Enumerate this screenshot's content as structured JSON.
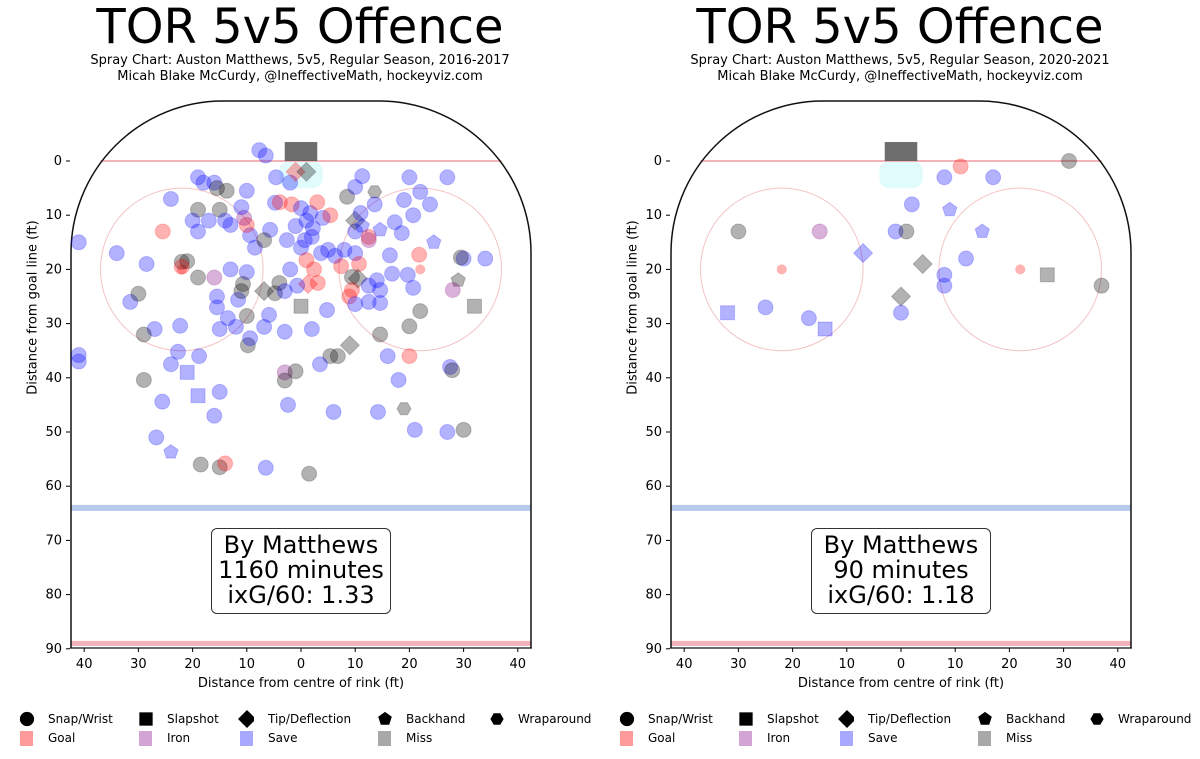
{
  "chart_data": [
    {
      "type": "scatter",
      "title": "TOR 5v5 Offence",
      "subtitle": "Spray Chart: Auston Matthews, 5v5, Regular Season, 2016-2017",
      "credit": "Micah Blake McCurdy, @IneffectiveMath, hockeyviz.com",
      "xlabel": "Distance from centre of rink (ft)",
      "ylabel": "Distance from goal line (ft)",
      "xlim": [
        -42.5,
        42.5
      ],
      "ylim": [
        90,
        -11
      ],
      "x_ticks": [
        -40,
        -30,
        -20,
        -10,
        0,
        10,
        20,
        30,
        40
      ],
      "x_tick_labels": [
        "40",
        "30",
        "20",
        "10",
        "0",
        "10",
        "20",
        "30",
        "40"
      ],
      "y_ticks": [
        0,
        10,
        20,
        30,
        40,
        50,
        60,
        70,
        80,
        90
      ],
      "y_tick_labels": [
        "0",
        "10",
        "20",
        "30",
        "40",
        "50",
        "60",
        "70",
        "80",
        "90"
      ],
      "annotation": [
        "By Matthews",
        "1160 minutes",
        "ixG/60: 1.33"
      ],
      "point_fields": [
        "x_ft",
        "y_ft",
        "shot_type",
        "result"
      ],
      "points": [
        [
          -7.7,
          -2,
          "c",
          "s"
        ],
        [
          -6.5,
          -1,
          "c",
          "s"
        ],
        [
          -4.6,
          3,
          "c",
          "s"
        ],
        [
          -2,
          4,
          "c",
          "s"
        ],
        [
          -1,
          2,
          "d",
          "g"
        ],
        [
          1,
          2,
          "d",
          "m"
        ],
        [
          -19,
          3,
          "c",
          "s"
        ],
        [
          -18,
          4,
          "c",
          "s"
        ],
        [
          -16,
          4,
          "c",
          "s"
        ],
        [
          -15.5,
          5,
          "c",
          "m"
        ],
        [
          -13.7,
          5.5,
          "c",
          "m"
        ],
        [
          -10,
          5.5,
          "c",
          "s"
        ],
        [
          -24,
          7,
          "c",
          "s"
        ],
        [
          -19,
          9,
          "c",
          "m"
        ],
        [
          -15,
          9,
          "c",
          "m"
        ],
        [
          -17,
          11,
          "c",
          "s"
        ],
        [
          -14,
          11,
          "c",
          "s"
        ],
        [
          -20,
          11,
          "c",
          "s"
        ],
        [
          -19,
          13,
          "c",
          "s"
        ],
        [
          -25.5,
          13,
          "c",
          "g"
        ],
        [
          -41,
          15,
          "c",
          "s"
        ],
        [
          -34,
          17,
          "c",
          "s"
        ],
        [
          -28.5,
          19,
          "c",
          "s"
        ],
        [
          -22,
          18.6,
          "c",
          "m"
        ],
        [
          -21,
          18.5,
          "c",
          "m"
        ],
        [
          -22,
          19.5,
          "c",
          "g"
        ],
        [
          -19,
          21.5,
          "c",
          "m"
        ],
        [
          -16,
          21.5,
          "c",
          "i"
        ],
        [
          -13,
          20,
          "c",
          "s"
        ],
        [
          -10,
          20.5,
          "c",
          "s"
        ],
        [
          -10.7,
          22.7,
          "c",
          "m"
        ],
        [
          -31.5,
          26,
          "c",
          "s"
        ],
        [
          -30,
          24.5,
          "c",
          "m"
        ],
        [
          -15.5,
          25,
          "c",
          "s"
        ],
        [
          -15.5,
          27,
          "c",
          "s"
        ],
        [
          -11.6,
          25.6,
          "c",
          "s"
        ],
        [
          -11,
          24,
          "c",
          "m"
        ],
        [
          -9.4,
          13.7,
          "c",
          "s"
        ],
        [
          -8.5,
          16,
          "c",
          "s"
        ],
        [
          -5.7,
          12.7,
          "c",
          "s"
        ],
        [
          -6.8,
          14.6,
          "c",
          "m"
        ],
        [
          -10,
          11.8,
          "c",
          "g"
        ],
        [
          -10.5,
          10.5,
          "c",
          "i"
        ],
        [
          -13,
          11.8,
          "c",
          "s"
        ],
        [
          -11,
          8.5,
          "c",
          "s"
        ],
        [
          -4.8,
          7.7,
          "c",
          "s"
        ],
        [
          -3.9,
          7.6,
          "c",
          "g"
        ],
        [
          -1.7,
          8,
          "c",
          "g"
        ],
        [
          0,
          8.7,
          "c",
          "s"
        ],
        [
          1.7,
          9.6,
          "c",
          "s"
        ],
        [
          3,
          7.6,
          "c",
          "g"
        ],
        [
          4,
          10.5,
          "c",
          "s"
        ],
        [
          5.4,
          10,
          "c",
          "g"
        ],
        [
          -2.6,
          14.6,
          "c",
          "s"
        ],
        [
          0,
          16,
          "c",
          "s"
        ],
        [
          0.7,
          14.6,
          "c",
          "s"
        ],
        [
          2.2,
          12.4,
          "c",
          "s"
        ],
        [
          3.7,
          17,
          "c",
          "s"
        ],
        [
          1,
          18.3,
          "c",
          "g"
        ],
        [
          2.4,
          20,
          "c",
          "g"
        ],
        [
          -2,
          20,
          "c",
          "s"
        ],
        [
          3.1,
          22.5,
          "c",
          "g"
        ],
        [
          1.3,
          22.7,
          "d",
          "g"
        ],
        [
          -0.7,
          23,
          "c",
          "s"
        ],
        [
          -4,
          22.5,
          "c",
          "m"
        ],
        [
          -4.8,
          24.4,
          "c",
          "m"
        ],
        [
          -3,
          24,
          "c",
          "s"
        ],
        [
          -6.8,
          24,
          "d",
          "m"
        ],
        [
          5,
          16.4,
          "c",
          "s"
        ],
        [
          6.3,
          17.5,
          "c",
          "s"
        ],
        [
          7.4,
          19.4,
          "c",
          "g"
        ],
        [
          8,
          16.4,
          "c",
          "s"
        ],
        [
          10,
          13,
          "c",
          "s"
        ],
        [
          10,
          11,
          "d",
          "m"
        ],
        [
          11.3,
          12,
          "p",
          "s"
        ],
        [
          12.5,
          14,
          "c",
          "g"
        ],
        [
          8.5,
          6.6,
          "c",
          "m"
        ],
        [
          10,
          4.8,
          "c",
          "s"
        ],
        [
          11.3,
          2.8,
          "c",
          "s"
        ],
        [
          13.6,
          5.7,
          "h",
          "m"
        ],
        [
          13.6,
          8,
          "c",
          "s"
        ],
        [
          11,
          9.6,
          "c",
          "s"
        ],
        [
          14.6,
          12.7,
          "p",
          "s"
        ],
        [
          10,
          17,
          "c",
          "s"
        ],
        [
          12.5,
          14.6,
          "c",
          "i"
        ],
        [
          10.7,
          19,
          "c",
          "g"
        ],
        [
          9.4,
          21.4,
          "c",
          "m"
        ],
        [
          10.5,
          21.7,
          "d",
          "m"
        ],
        [
          12.5,
          23,
          "c",
          "s"
        ],
        [
          14,
          22,
          "c",
          "s"
        ],
        [
          14.6,
          23.8,
          "c",
          "s"
        ],
        [
          8.9,
          25,
          "c",
          "g"
        ],
        [
          9.4,
          23.8,
          "c",
          "g"
        ],
        [
          10,
          26.4,
          "c",
          "s"
        ],
        [
          12.5,
          26,
          "c",
          "s"
        ],
        [
          17.3,
          11.3,
          "c",
          "s"
        ],
        [
          16.4,
          17.4,
          "c",
          "s"
        ],
        [
          18.6,
          13.3,
          "c",
          "s"
        ],
        [
          20,
          3,
          "c",
          "s"
        ],
        [
          27,
          3,
          "c",
          "s"
        ],
        [
          22,
          5.7,
          "c",
          "s"
        ],
        [
          23.8,
          8,
          "c",
          "s"
        ],
        [
          19,
          7.2,
          "c",
          "s"
        ],
        [
          20.7,
          10,
          "c",
          "s"
        ],
        [
          24.5,
          15,
          "p",
          "s"
        ],
        [
          30,
          18,
          "c",
          "s"
        ],
        [
          34,
          18,
          "c",
          "s"
        ],
        [
          29.5,
          17.8,
          "c",
          "m"
        ],
        [
          21.8,
          17.3,
          "c",
          "g"
        ],
        [
          29,
          22,
          "p",
          "m"
        ],
        [
          28,
          23.8,
          "c",
          "i"
        ],
        [
          32,
          26.8,
          "s",
          "m"
        ],
        [
          22,
          27.7,
          "c",
          "m"
        ],
        [
          20,
          30.5,
          "c",
          "m"
        ],
        [
          16.8,
          20.8,
          "c",
          "s"
        ],
        [
          19.7,
          21,
          "c",
          "s"
        ],
        [
          20.7,
          23.4,
          "c",
          "s"
        ],
        [
          14.6,
          26.2,
          "c",
          "s"
        ],
        [
          0,
          26.8,
          "s",
          "m"
        ],
        [
          4.8,
          27.5,
          "c",
          "s"
        ],
        [
          2,
          31,
          "c",
          "s"
        ],
        [
          14.6,
          32,
          "c",
          "m"
        ],
        [
          16,
          36,
          "c",
          "s"
        ],
        [
          20,
          36,
          "c",
          "g"
        ],
        [
          27.5,
          38,
          "c",
          "s"
        ],
        [
          27.9,
          38.6,
          "c",
          "m"
        ],
        [
          18,
          40.4,
          "c",
          "s"
        ],
        [
          19,
          45.7,
          "h",
          "m"
        ],
        [
          14.2,
          46.3,
          "c",
          "s"
        ],
        [
          21,
          49.6,
          "c",
          "s"
        ],
        [
          27,
          50,
          "c",
          "s"
        ],
        [
          30,
          49.6,
          "c",
          "m"
        ],
        [
          9,
          34,
          "d",
          "m"
        ],
        [
          6.8,
          36,
          "c",
          "m"
        ],
        [
          5.4,
          36,
          "c",
          "m"
        ],
        [
          3.5,
          37.5,
          "c",
          "s"
        ],
        [
          -3,
          39,
          "c",
          "i"
        ],
        [
          -3,
          40.5,
          "c",
          "m"
        ],
        [
          -1,
          38.8,
          "c",
          "m"
        ],
        [
          -2.4,
          45,
          "c",
          "s"
        ],
        [
          6,
          46.3,
          "c",
          "s"
        ],
        [
          -6.5,
          56.6,
          "c",
          "s"
        ],
        [
          1.5,
          57.7,
          "c",
          "m"
        ],
        [
          -9.8,
          34,
          "c",
          "m"
        ],
        [
          -9.4,
          32.7,
          "c",
          "s"
        ],
        [
          -12,
          30.6,
          "c",
          "s"
        ],
        [
          -15,
          31,
          "c",
          "s"
        ],
        [
          -10,
          28.6,
          "c",
          "m"
        ],
        [
          -13.5,
          29,
          "c",
          "s"
        ],
        [
          -41,
          35.8,
          "c",
          "s"
        ],
        [
          -41,
          37,
          "c",
          "s"
        ],
        [
          -29,
          40.4,
          "c",
          "m"
        ],
        [
          -21,
          39,
          "s",
          "s"
        ],
        [
          -19,
          43.3,
          "s",
          "s"
        ],
        [
          -25.6,
          44.4,
          "c",
          "s"
        ],
        [
          -16,
          47,
          "c",
          "s"
        ],
        [
          -15,
          42.6,
          "c",
          "s"
        ],
        [
          -26.7,
          51,
          "c",
          "s"
        ],
        [
          -27,
          31,
          "c",
          "s"
        ],
        [
          -29,
          32,
          "c",
          "m"
        ],
        [
          -24,
          53.7,
          "p",
          "s"
        ],
        [
          -18.5,
          56,
          "c",
          "m"
        ],
        [
          -15,
          56.5,
          "c",
          "m"
        ],
        [
          -14,
          55.8,
          "c",
          "g"
        ],
        [
          -22.7,
          35.2,
          "c",
          "s"
        ],
        [
          -18.8,
          36,
          "c",
          "s"
        ],
        [
          -24,
          37.5,
          "c",
          "s"
        ],
        [
          -22.3,
          30.4,
          "c",
          "s"
        ],
        [
          -6.8,
          30.6,
          "c",
          "s"
        ],
        [
          -5.9,
          28.4,
          "c",
          "s"
        ],
        [
          -3,
          31.5,
          "c",
          "s"
        ],
        [
          1,
          11,
          "c",
          "s"
        ],
        [
          -1,
          12,
          "c",
          "s"
        ],
        [
          2,
          14,
          "c",
          "s"
        ]
      ]
    },
    {
      "type": "scatter",
      "title": "TOR 5v5 Offence",
      "subtitle": "Spray Chart: Auston Matthews, 5v5, Regular Season, 2020-2021",
      "credit": "Micah Blake McCurdy, @IneffectiveMath, hockeyviz.com",
      "xlabel": "Distance from centre of rink (ft)",
      "ylabel": "Distance from goal line (ft)",
      "xlim": [
        -42.5,
        42.5
      ],
      "ylim": [
        90,
        -11
      ],
      "x_ticks": [
        -40,
        -30,
        -20,
        -10,
        0,
        10,
        20,
        30,
        40
      ],
      "x_tick_labels": [
        "40",
        "30",
        "20",
        "10",
        "0",
        "10",
        "20",
        "30",
        "40"
      ],
      "y_ticks": [
        0,
        10,
        20,
        30,
        40,
        50,
        60,
        70,
        80,
        90
      ],
      "y_tick_labels": [
        "0",
        "10",
        "20",
        "30",
        "40",
        "50",
        "60",
        "70",
        "80",
        "90"
      ],
      "annotation": [
        "By Matthews",
        "90 minutes",
        "ixG/60: 1.18"
      ],
      "point_fields": [
        "x_ft",
        "y_ft",
        "shot_type",
        "result"
      ],
      "points": [
        [
          31,
          0,
          "c",
          "m"
        ],
        [
          11,
          1,
          "c",
          "g"
        ],
        [
          8,
          3,
          "c",
          "s"
        ],
        [
          17,
          3,
          "c",
          "s"
        ],
        [
          2,
          8,
          "c",
          "s"
        ],
        [
          9,
          9,
          "p",
          "s"
        ],
        [
          15,
          13,
          "p",
          "s"
        ],
        [
          -1,
          13,
          "c",
          "s"
        ],
        [
          1,
          13,
          "c",
          "m"
        ],
        [
          -30,
          13,
          "c",
          "m"
        ],
        [
          -15,
          13,
          "c",
          "i"
        ],
        [
          -7,
          17,
          "d",
          "s"
        ],
        [
          4,
          19,
          "d",
          "m"
        ],
        [
          12,
          18,
          "c",
          "s"
        ],
        [
          8,
          21,
          "c",
          "s"
        ],
        [
          8,
          23,
          "c",
          "s"
        ],
        [
          27,
          21,
          "s",
          "m"
        ],
        [
          37,
          23,
          "c",
          "m"
        ],
        [
          0,
          25,
          "d",
          "m"
        ],
        [
          0,
          28,
          "c",
          "s"
        ],
        [
          -32,
          28,
          "s",
          "s"
        ],
        [
          -25,
          27,
          "c",
          "s"
        ],
        [
          -17,
          29,
          "c",
          "s"
        ],
        [
          -14,
          31,
          "s",
          "s"
        ]
      ]
    }
  ],
  "legend": {
    "shapes": [
      {
        "key": "c",
        "label": "Snap/Wrist"
      },
      {
        "key": "s",
        "label": "Slapshot"
      },
      {
        "key": "d",
        "label": "Tip/Deflection"
      },
      {
        "key": "p",
        "label": "Backhand"
      },
      {
        "key": "h",
        "label": "Wraparound"
      }
    ],
    "results": [
      {
        "key": "g",
        "label": "Goal",
        "color": "#ff9a9a"
      },
      {
        "key": "i",
        "label": "Iron",
        "color": "#d3a3d3"
      },
      {
        "key": "s",
        "label": "Save",
        "color": "#a8a8ff"
      },
      {
        "key": "m",
        "label": "Miss",
        "color": "#a8a8a8"
      }
    ]
  },
  "colors": {
    "goal": "#ff0000",
    "iron": "#800080",
    "save": "#0000ff",
    "miss": "#000000",
    "goal_line": "#f4b3b8",
    "blue_line": "#b8c8ec",
    "crease": "#e0fbfc",
    "net": "#555555"
  }
}
